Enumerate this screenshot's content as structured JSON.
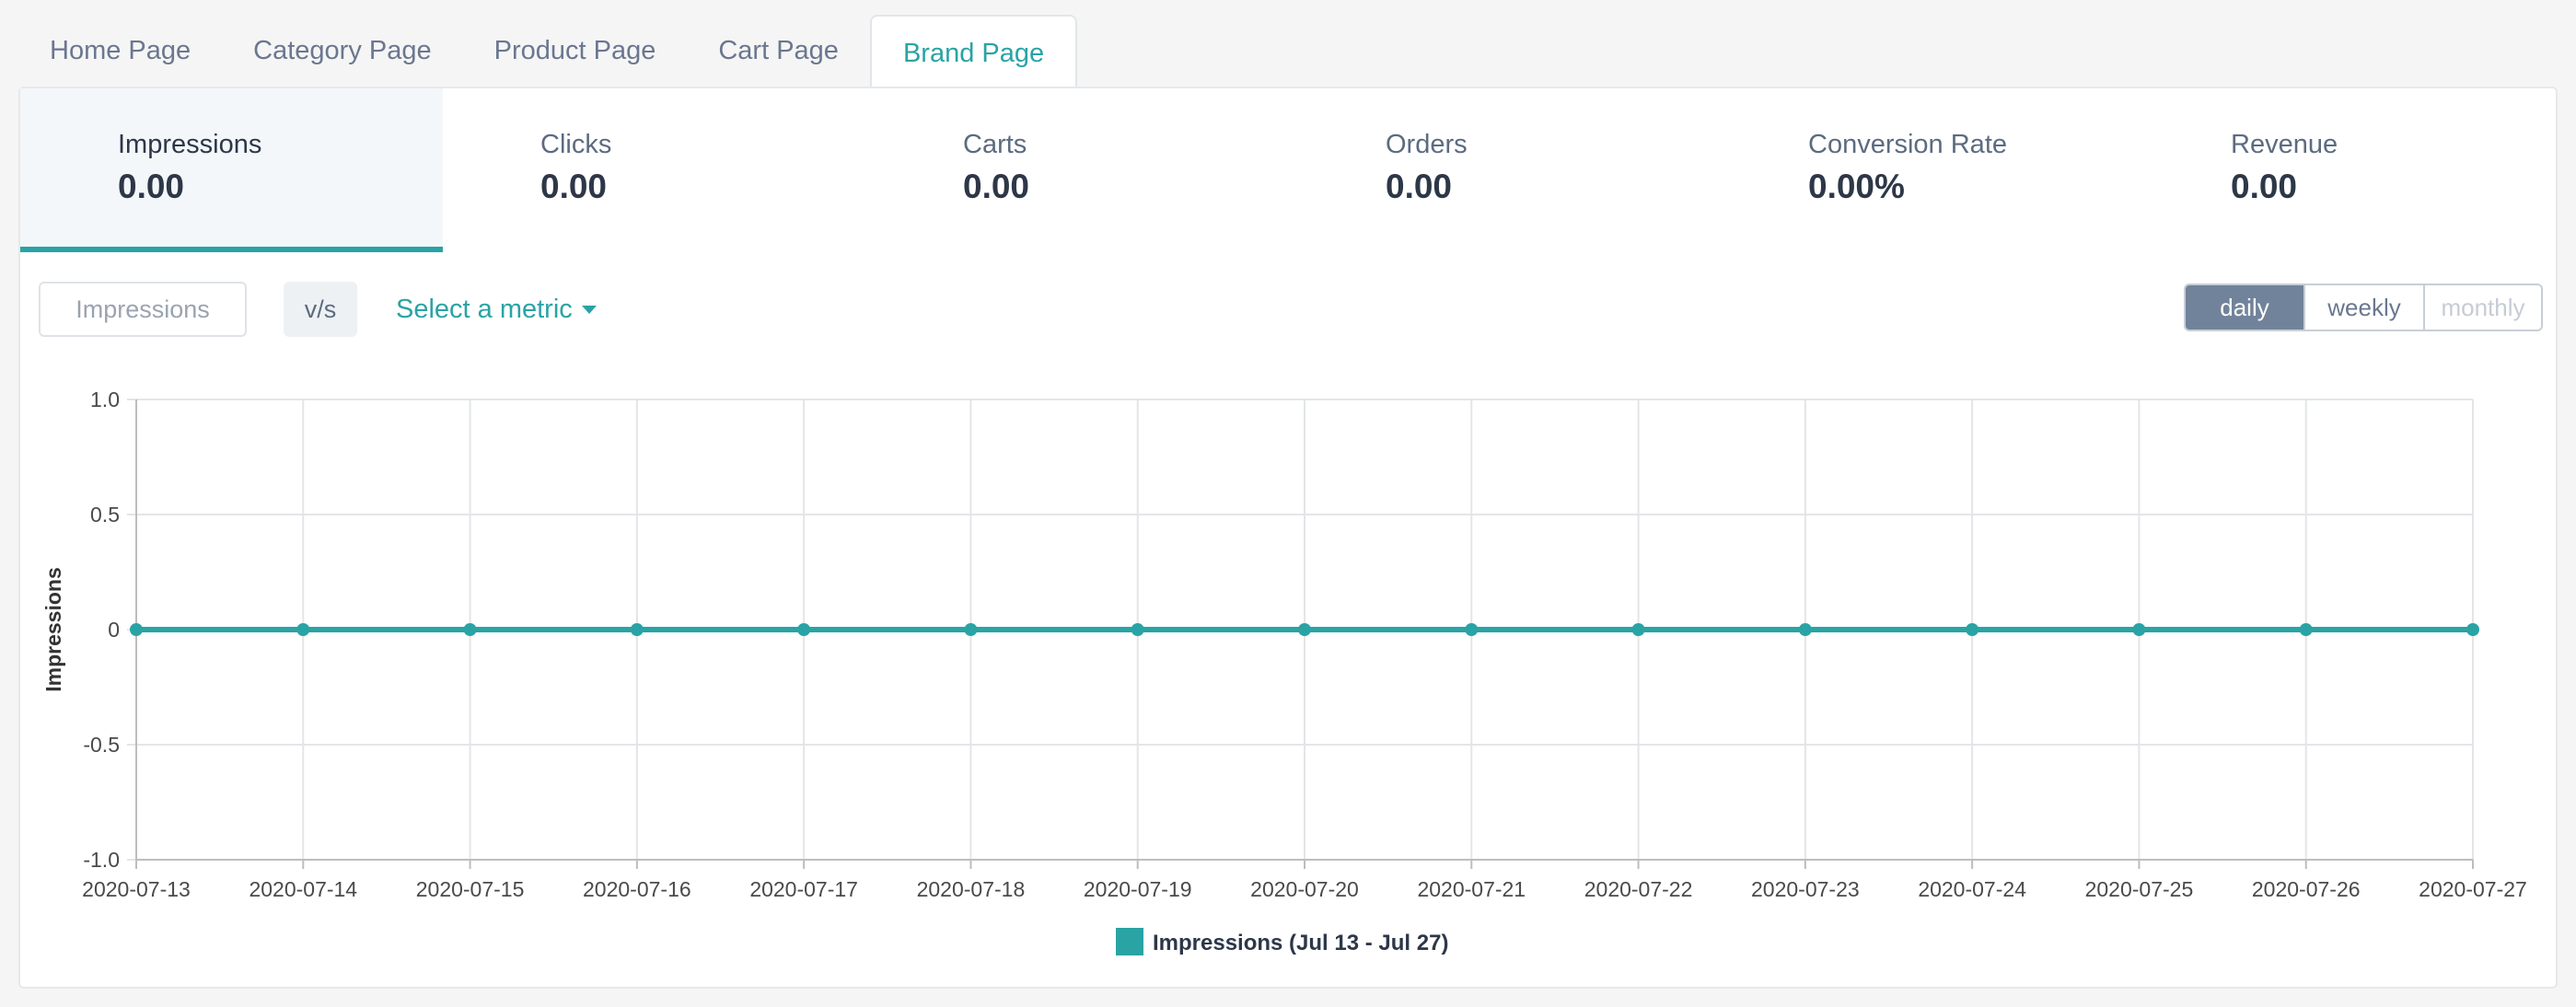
{
  "tabs": [
    {
      "label": "Home Page",
      "active": false
    },
    {
      "label": "Category Page",
      "active": false
    },
    {
      "label": "Product Page",
      "active": false
    },
    {
      "label": "Cart Page",
      "active": false
    },
    {
      "label": "Brand Page",
      "active": true
    }
  ],
  "metrics": [
    {
      "label": "Impressions",
      "value": "0.00",
      "active": true
    },
    {
      "label": "Clicks",
      "value": "0.00",
      "active": false
    },
    {
      "label": "Carts",
      "value": "0.00",
      "active": false
    },
    {
      "label": "Orders",
      "value": "0.00",
      "active": false
    },
    {
      "label": "Conversion Rate",
      "value": "0.00%",
      "active": false
    },
    {
      "label": "Revenue",
      "value": "0.00",
      "active": false
    }
  ],
  "controls": {
    "primary_metric": "Impressions",
    "vs_label": "v/s",
    "select_metric": "Select a metric",
    "granularity": [
      {
        "label": "daily",
        "state": "active"
      },
      {
        "label": "weekly",
        "state": "normal"
      },
      {
        "label": "monthly",
        "state": "disabled"
      }
    ]
  },
  "colors": {
    "accent": "#2aa3a5",
    "text": "#2d3748",
    "muted": "#6b7790",
    "active_button": "#71839a"
  },
  "chart_data": {
    "type": "line",
    "ylabel": "Impressions",
    "ylim": [
      -1.0,
      1.0
    ],
    "yticks": [
      "1.0",
      "0.5",
      "0",
      "-0.5",
      "-1.0"
    ],
    "ytick_values": [
      1.0,
      0.5,
      0,
      -0.5,
      -1.0
    ],
    "x": [
      "2020-07-13",
      "2020-07-14",
      "2020-07-15",
      "2020-07-16",
      "2020-07-17",
      "2020-07-18",
      "2020-07-19",
      "2020-07-20",
      "2020-07-21",
      "2020-07-22",
      "2020-07-23",
      "2020-07-24",
      "2020-07-25",
      "2020-07-26",
      "2020-07-27"
    ],
    "series": [
      {
        "name": "Impressions (Jul 13 - Jul 27)",
        "color": "#2aa3a5",
        "values": [
          0,
          0,
          0,
          0,
          0,
          0,
          0,
          0,
          0,
          0,
          0,
          0,
          0,
          0,
          0
        ]
      }
    ],
    "grid": true,
    "legend": "bottom-center"
  }
}
